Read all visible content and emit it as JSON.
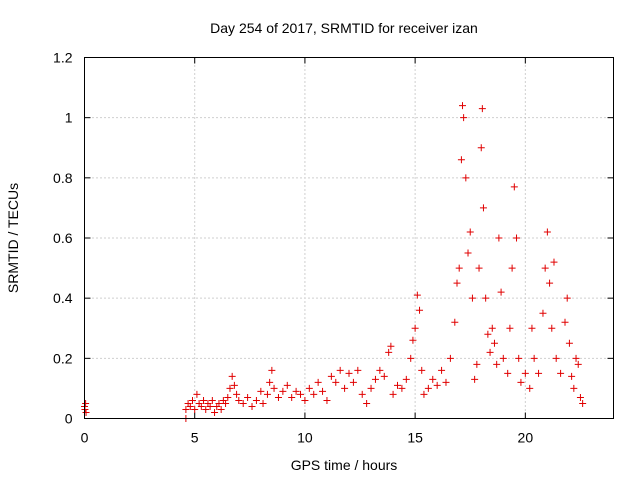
{
  "chart_data": {
    "type": "scatter",
    "title": "Day 254 of 2017, SRMTID for receiver izan",
    "xlabel": "GPS time / hours",
    "ylabel": "SRMTID / TECUs",
    "xlim": [
      0,
      24
    ],
    "ylim": [
      0,
      1.2
    ],
    "x_ticks": [
      0,
      5,
      10,
      15,
      20
    ],
    "x_tick_labels": [
      "0",
      "5",
      "10",
      "15",
      "20"
    ],
    "y_ticks": [
      0,
      0.2,
      0.4,
      0.6,
      0.8,
      1,
      1.2
    ],
    "y_tick_labels": [
      "0",
      "0.2",
      "0.4",
      "0.6",
      "0.8",
      "1",
      "1.2"
    ],
    "grid": true,
    "marker": "plus",
    "color": "#e00000",
    "series": [
      {
        "name": "SRMTID",
        "points": [
          [
            0.0,
            0.04
          ],
          [
            0.02,
            0.03
          ],
          [
            0.05,
            0.05
          ],
          [
            0.07,
            0.02
          ],
          [
            4.6,
            0.03
          ],
          [
            4.6,
            0.0
          ],
          [
            4.7,
            0.05
          ],
          [
            4.8,
            0.04
          ],
          [
            4.9,
            0.06
          ],
          [
            5.0,
            0.03
          ],
          [
            5.1,
            0.08
          ],
          [
            5.2,
            0.05
          ],
          [
            5.3,
            0.04
          ],
          [
            5.4,
            0.06
          ],
          [
            5.5,
            0.03
          ],
          [
            5.6,
            0.05
          ],
          [
            5.7,
            0.04
          ],
          [
            5.8,
            0.06
          ],
          [
            5.9,
            0.02
          ],
          [
            6.0,
            0.04
          ],
          [
            6.1,
            0.05
          ],
          [
            6.2,
            0.03
          ],
          [
            6.3,
            0.06
          ],
          [
            6.4,
            0.05
          ],
          [
            6.5,
            0.07
          ],
          [
            6.6,
            0.1
          ],
          [
            6.7,
            0.14
          ],
          [
            6.8,
            0.11
          ],
          [
            6.9,
            0.08
          ],
          [
            7.0,
            0.06
          ],
          [
            7.2,
            0.05
          ],
          [
            7.4,
            0.07
          ],
          [
            7.6,
            0.04
          ],
          [
            7.8,
            0.06
          ],
          [
            8.0,
            0.09
          ],
          [
            8.1,
            0.05
          ],
          [
            8.3,
            0.08
          ],
          [
            8.4,
            0.12
          ],
          [
            8.5,
            0.16
          ],
          [
            8.6,
            0.1
          ],
          [
            8.8,
            0.07
          ],
          [
            9.0,
            0.09
          ],
          [
            9.2,
            0.11
          ],
          [
            9.4,
            0.07
          ],
          [
            9.6,
            0.09
          ],
          [
            9.8,
            0.08
          ],
          [
            10.0,
            0.06
          ],
          [
            10.2,
            0.1
          ],
          [
            10.4,
            0.08
          ],
          [
            10.6,
            0.12
          ],
          [
            10.8,
            0.09
          ],
          [
            11.0,
            0.06
          ],
          [
            11.2,
            0.14
          ],
          [
            11.4,
            0.12
          ],
          [
            11.6,
            0.16
          ],
          [
            11.8,
            0.1
          ],
          [
            12.0,
            0.15
          ],
          [
            12.2,
            0.12
          ],
          [
            12.4,
            0.16
          ],
          [
            12.6,
            0.08
          ],
          [
            12.8,
            0.05
          ],
          [
            13.0,
            0.1
          ],
          [
            13.2,
            0.13
          ],
          [
            13.4,
            0.16
          ],
          [
            13.6,
            0.14
          ],
          [
            13.8,
            0.22
          ],
          [
            13.9,
            0.24
          ],
          [
            14.0,
            0.08
          ],
          [
            14.2,
            0.11
          ],
          [
            14.4,
            0.1
          ],
          [
            14.6,
            0.13
          ],
          [
            14.8,
            0.2
          ],
          [
            14.9,
            0.26
          ],
          [
            15.0,
            0.3
          ],
          [
            15.1,
            0.41
          ],
          [
            15.2,
            0.36
          ],
          [
            15.3,
            0.16
          ],
          [
            15.4,
            0.08
          ],
          [
            15.6,
            0.1
          ],
          [
            15.8,
            0.13
          ],
          [
            16.0,
            0.11
          ],
          [
            16.2,
            0.16
          ],
          [
            16.4,
            0.12
          ],
          [
            16.6,
            0.2
          ],
          [
            16.8,
            0.32
          ],
          [
            16.9,
            0.45
          ],
          [
            17.0,
            0.5
          ],
          [
            17.1,
            0.86
          ],
          [
            17.15,
            1.04
          ],
          [
            17.2,
            1.0
          ],
          [
            17.3,
            0.8
          ],
          [
            17.4,
            0.55
          ],
          [
            17.5,
            0.62
          ],
          [
            17.6,
            0.4
          ],
          [
            17.7,
            0.13
          ],
          [
            17.8,
            0.18
          ],
          [
            17.9,
            0.5
          ],
          [
            18.0,
            0.9
          ],
          [
            18.05,
            1.03
          ],
          [
            18.1,
            0.7
          ],
          [
            18.2,
            0.4
          ],
          [
            18.3,
            0.28
          ],
          [
            18.4,
            0.22
          ],
          [
            18.5,
            0.3
          ],
          [
            18.6,
            0.25
          ],
          [
            18.7,
            0.18
          ],
          [
            18.8,
            0.6
          ],
          [
            18.9,
            0.42
          ],
          [
            19.0,
            0.2
          ],
          [
            19.2,
            0.15
          ],
          [
            19.3,
            0.3
          ],
          [
            19.4,
            0.5
          ],
          [
            19.5,
            0.77
          ],
          [
            19.6,
            0.6
          ],
          [
            19.7,
            0.2
          ],
          [
            19.8,
            0.12
          ],
          [
            20.0,
            0.15
          ],
          [
            20.2,
            0.1
          ],
          [
            20.3,
            0.3
          ],
          [
            20.4,
            0.2
          ],
          [
            20.6,
            0.15
          ],
          [
            20.8,
            0.35
          ],
          [
            20.9,
            0.5
          ],
          [
            21.0,
            0.62
          ],
          [
            21.1,
            0.45
          ],
          [
            21.2,
            0.3
          ],
          [
            21.3,
            0.52
          ],
          [
            21.4,
            0.2
          ],
          [
            21.6,
            0.15
          ],
          [
            21.8,
            0.32
          ],
          [
            21.9,
            0.4
          ],
          [
            22.0,
            0.25
          ],
          [
            22.1,
            0.14
          ],
          [
            22.2,
            0.1
          ],
          [
            22.3,
            0.2
          ],
          [
            22.4,
            0.18
          ],
          [
            22.5,
            0.07
          ],
          [
            22.6,
            0.05
          ]
        ]
      }
    ]
  }
}
